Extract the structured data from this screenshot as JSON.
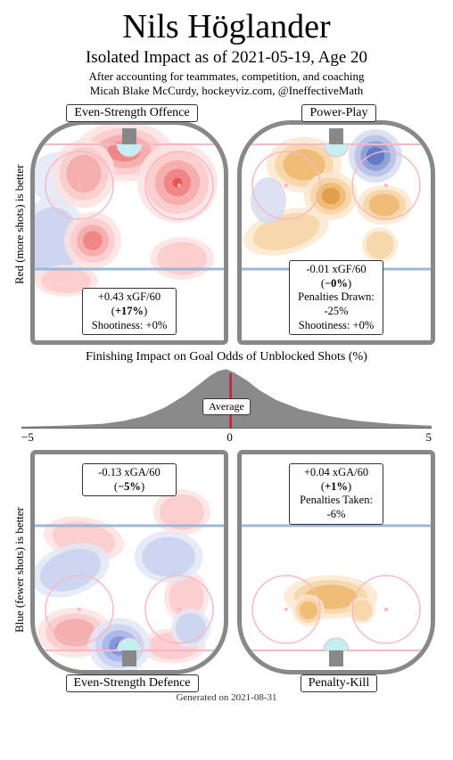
{
  "title": "Nils Höglander",
  "subtitle": "Isolated Impact as of 2021-05-19, Age 20",
  "credit_line1": "After accounting for teammates, competition, and coaching",
  "credit_line2": "Micah Blake McCurdy, hockeyviz.com, @IneffectiveMath",
  "ylabel_top": "Red (more shots) is better",
  "ylabel_bottom": "Blue (fewer shots) is better",
  "mid_title": "Finishing Impact on Goal Odds of Unblocked Shots (%)",
  "avg_label": "Average",
  "axis_ticks": [
    "−5",
    "0",
    "5"
  ],
  "footer": "Generated on 2021-08-31",
  "panels": {
    "evo": {
      "label": "Even-Strength Offence",
      "stats": [
        "+0.43 xGF/60 (+17%)",
        "Shootiness: +0%"
      ],
      "stat_bold_idx": 0
    },
    "pp": {
      "label": "Power-Play",
      "stats": [
        "-0.01 xGF/60 (−0%)",
        "Penalties Drawn: -25%",
        "Shootiness: +0%"
      ],
      "stat_bold_idx": 0
    },
    "evd": {
      "label": "Even-Strength Defence",
      "stats": [
        "-0.13 xGA/60 (−5%)"
      ],
      "stat_bold_idx": 0
    },
    "pk": {
      "label": "Penalty-Kill",
      "stats": [
        "+0.04 xGA/60 (+1%)",
        "Penalties Taken: -6%"
      ],
      "stat_bold_idx": 0
    }
  },
  "colors": {
    "red_levels": [
      "#fde2e2",
      "#facaca",
      "#f5a9a9",
      "#ef7f7f",
      "#e74c4c",
      "#d62020"
    ],
    "blue_levels": [
      "#e3e7f6",
      "#c9d1ef",
      "#a6b3e5",
      "#7c8fd9",
      "#4d66c9",
      "#1f3fb5"
    ],
    "orange_levels": [
      "#fbe8cf",
      "#f6d4a4",
      "#eeb86f",
      "#e09a3e",
      "#c77a1a"
    ],
    "pp_blue": [
      "#d7dcf0",
      "#b6c0e6",
      "#8a9bd6",
      "#5c73c4"
    ],
    "rink_border": "#888888",
    "goal_line": "#f7b7c4",
    "blue_line": "#9cb8d8",
    "faceoff_circle": "#f7b7c4",
    "crease": "#c4eef0",
    "hist_fill": "#8a8a8a",
    "hist_line": "#c41e3a"
  },
  "histogram": {
    "xmin": -5,
    "xmax": 5,
    "marker_x": 0.1,
    "points": [
      [
        -5,
        2
      ],
      [
        -4,
        3
      ],
      [
        -3,
        5
      ],
      [
        -2.5,
        8
      ],
      [
        -2,
        13
      ],
      [
        -1.5,
        22
      ],
      [
        -1,
        35
      ],
      [
        -0.7,
        45
      ],
      [
        -0.4,
        55
      ],
      [
        -0.2,
        60
      ],
      [
        0,
        62
      ],
      [
        0.2,
        58
      ],
      [
        0.5,
        50
      ],
      [
        0.8,
        40
      ],
      [
        1.2,
        30
      ],
      [
        1.8,
        20
      ],
      [
        2.5,
        13
      ],
      [
        3.2,
        8
      ],
      [
        4,
        5
      ],
      [
        5,
        3
      ]
    ]
  }
}
